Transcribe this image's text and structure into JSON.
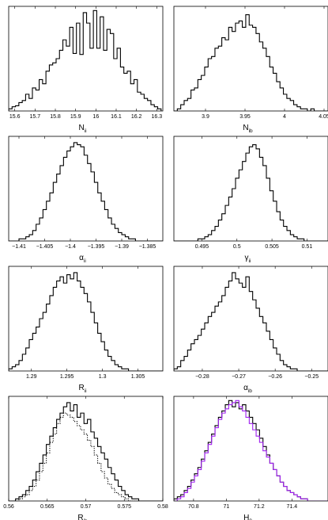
{
  "figure": {
    "panels": [
      {
        "id": "N_ii",
        "xlabel_main": "N",
        "xlabel_sub": "ii"
      },
      {
        "id": "N_ib",
        "xlabel_main": "N",
        "xlabel_sub": "ib"
      },
      {
        "id": "alpha_ii",
        "xlabel_main": "α",
        "xlabel_sub": "ii"
      },
      {
        "id": "gamma_ii",
        "xlabel_main": "γ",
        "xlabel_sub": "ii"
      },
      {
        "id": "R_ii",
        "xlabel_main": "R",
        "xlabel_sub": "ii"
      },
      {
        "id": "alpha_ib",
        "xlabel_main": "α",
        "xlabel_sub": "ib"
      },
      {
        "id": "R_ib",
        "xlabel_main": "R",
        "xlabel_sub": "ib"
      },
      {
        "id": "H_0",
        "xlabel_main": "H",
        "xlabel_sub": "0"
      }
    ]
  },
  "chart_data": [
    {
      "type": "histogram",
      "xlabel": "N_ii",
      "xlim": [
        15.57,
        16.33
      ],
      "xticks": [
        15.6,
        15.7,
        15.8,
        15.9,
        16,
        16.1,
        16.2,
        16.3
      ],
      "xtick_labels": [
        "15.6",
        "15.7",
        "15.8",
        "15.9",
        "16",
        "16.1",
        "16.2",
        "16.3"
      ],
      "series": [
        {
          "color": "#000000",
          "style": "solid",
          "bin_start": 15.57,
          "bin_width": 0.0167,
          "values": [
            0.02,
            0.04,
            0.05,
            0.08,
            0.1,
            0.16,
            0.12,
            0.22,
            0.2,
            0.3,
            0.26,
            0.38,
            0.44,
            0.46,
            0.5,
            0.58,
            0.68,
            0.62,
            0.8,
            0.55,
            0.84,
            0.54,
            0.94,
            0.84,
            0.6,
            0.96,
            0.6,
            0.9,
            0.58,
            0.78,
            0.74,
            0.5,
            0.6,
            0.42,
            0.36,
            0.38,
            0.26,
            0.3,
            0.18,
            0.16,
            0.12,
            0.1,
            0.06,
            0.04,
            0.02
          ]
        }
      ]
    },
    {
      "type": "histogram",
      "xlabel": "N_ib",
      "xlim": [
        3.86,
        4.055
      ],
      "xticks": [
        3.9,
        3.95,
        4,
        4.05
      ],
      "xtick_labels": [
        "3.9",
        "3.95",
        "4",
        "4.05"
      ],
      "series": [
        {
          "color": "#000000",
          "style": "solid",
          "bin_start": 3.86,
          "bin_width": 0.00433,
          "values": [
            0.0,
            0.02,
            0.06,
            0.1,
            0.12,
            0.2,
            0.22,
            0.3,
            0.34,
            0.42,
            0.5,
            0.52,
            0.6,
            0.62,
            0.7,
            0.68,
            0.8,
            0.76,
            0.84,
            0.86,
            0.8,
            0.92,
            0.82,
            0.8,
            0.74,
            0.66,
            0.6,
            0.52,
            0.42,
            0.36,
            0.28,
            0.22,
            0.16,
            0.12,
            0.1,
            0.06,
            0.04,
            0.02,
            0.02,
            0.0,
            0.02,
            0.0,
            0.0,
            0.0,
            0.0
          ]
        }
      ]
    },
    {
      "type": "histogram",
      "xlabel": "α_ii",
      "xlim": [
        -1.412,
        -1.382
      ],
      "xticks": [
        -1.41,
        -1.405,
        -1.4,
        -1.395,
        -1.39,
        -1.385
      ],
      "xtick_labels": [
        "−1.41",
        "−1.405",
        "−1.4",
        "−1.395",
        "−1.39",
        "−1.385"
      ],
      "series": [
        {
          "color": "#000000",
          "style": "solid",
          "bin_start": -1.412,
          "bin_width": 0.000667,
          "values": [
            0.0,
            0.0,
            0.0,
            0.02,
            0.02,
            0.04,
            0.06,
            0.1,
            0.16,
            0.22,
            0.3,
            0.38,
            0.46,
            0.56,
            0.64,
            0.72,
            0.8,
            0.86,
            0.9,
            0.94,
            0.92,
            0.9,
            0.82,
            0.74,
            0.66,
            0.56,
            0.46,
            0.38,
            0.3,
            0.22,
            0.16,
            0.12,
            0.08,
            0.06,
            0.04,
            0.02,
            0.02,
            0.0,
            0.0,
            0.0,
            0.0,
            0.0,
            0.0,
            0.0,
            0.0
          ]
        }
      ]
    },
    {
      "type": "histogram",
      "xlabel": "γ_ii",
      "xlim": [
        0.491,
        0.513
      ],
      "xticks": [
        0.495,
        0.5,
        0.505,
        0.51
      ],
      "xtick_labels": [
        "0.495",
        "0.5",
        "0.505",
        "0.51"
      ],
      "series": [
        {
          "color": "#000000",
          "style": "solid",
          "bin_start": 0.491,
          "bin_width": 0.000489,
          "values": [
            0.0,
            0.0,
            0.0,
            0.0,
            0.0,
            0.0,
            0.0,
            0.02,
            0.02,
            0.04,
            0.06,
            0.1,
            0.14,
            0.2,
            0.26,
            0.34,
            0.42,
            0.5,
            0.6,
            0.68,
            0.76,
            0.84,
            0.9,
            0.92,
            0.88,
            0.8,
            0.72,
            0.6,
            0.48,
            0.38,
            0.28,
            0.2,
            0.14,
            0.1,
            0.06,
            0.04,
            0.02,
            0.02,
            0.0,
            0.0,
            0.0,
            0.0,
            0.0,
            0.0,
            0.0
          ]
        }
      ]
    },
    {
      "type": "histogram",
      "xlabel": "R_ii",
      "xlim": [
        1.2868,
        1.3085
      ],
      "xticks": [
        1.29,
        1.295,
        1.3,
        1.305
      ],
      "xtick_labels": [
        "1.29",
        "1.295",
        "1.3",
        "1.305"
      ],
      "series": [
        {
          "color": "#000000",
          "style": "solid",
          "bin_start": 1.2868,
          "bin_width": 0.000482,
          "values": [
            0.02,
            0.04,
            0.06,
            0.1,
            0.16,
            0.22,
            0.3,
            0.36,
            0.42,
            0.5,
            0.56,
            0.64,
            0.72,
            0.8,
            0.86,
            0.9,
            0.84,
            0.92,
            0.88,
            0.94,
            0.86,
            0.8,
            0.74,
            0.66,
            0.56,
            0.46,
            0.36,
            0.28,
            0.2,
            0.14,
            0.1,
            0.06,
            0.04,
            0.02,
            0.02,
            0.0,
            0.0,
            0.0,
            0.0,
            0.0,
            0.0,
            0.0,
            0.0,
            0.0,
            0.0
          ]
        }
      ]
    },
    {
      "type": "histogram",
      "xlabel": "α_ib",
      "xlim": [
        -0.2878,
        -0.2455
      ],
      "xticks": [
        -0.28,
        -0.27,
        -0.26,
        -0.25
      ],
      "xtick_labels": [
        "−0.28",
        "−0.27",
        "−0.26",
        "−0.25"
      ],
      "series": [
        {
          "color": "#000000",
          "style": "solid",
          "bin_start": -0.2878,
          "bin_width": 0.00094,
          "values": [
            0.02,
            0.04,
            0.1,
            0.14,
            0.2,
            0.26,
            0.3,
            0.34,
            0.4,
            0.46,
            0.52,
            0.56,
            0.62,
            0.66,
            0.72,
            0.8,
            0.86,
            0.94,
            0.88,
            0.84,
            0.8,
            0.9,
            0.76,
            0.68,
            0.6,
            0.52,
            0.46,
            0.38,
            0.3,
            0.22,
            0.16,
            0.1,
            0.06,
            0.04,
            0.02,
            0.02,
            0.0,
            0.0,
            0.0,
            0.0,
            0.0,
            0.0,
            0.0,
            0.0,
            0.0
          ]
        }
      ]
    },
    {
      "type": "histogram",
      "xlabel": "R_ib",
      "xlim": [
        0.56,
        0.58
      ],
      "xticks": [
        0.56,
        0.565,
        0.57,
        0.575,
        0.58
      ],
      "xtick_labels": [
        "0.56",
        "0.565",
        "0.57",
        "0.575",
        "0.58"
      ],
      "series": [
        {
          "color": "#000000",
          "style": "solid",
          "bin_start": 0.56,
          "bin_width": 0.000444,
          "values": [
            0.0,
            0.0,
            0.02,
            0.04,
            0.06,
            0.1,
            0.14,
            0.2,
            0.28,
            0.36,
            0.44,
            0.54,
            0.62,
            0.7,
            0.78,
            0.84,
            0.9,
            0.94,
            0.86,
            0.92,
            0.8,
            0.84,
            0.74,
            0.78,
            0.66,
            0.6,
            0.52,
            0.46,
            0.4,
            0.32,
            0.26,
            0.2,
            0.14,
            0.1,
            0.06,
            0.04,
            0.02,
            0.02,
            0.0,
            0.0,
            0.0,
            0.0,
            0.0,
            0.0,
            0.0
          ]
        },
        {
          "color": "#000000",
          "style": "dotted",
          "bin_start": 0.56,
          "bin_width": 0.000444,
          "values": [
            0.0,
            0.0,
            0.0,
            0.02,
            0.04,
            0.06,
            0.1,
            0.14,
            0.2,
            0.28,
            0.36,
            0.46,
            0.56,
            0.64,
            0.74,
            0.8,
            0.84,
            0.82,
            0.8,
            0.76,
            0.72,
            0.68,
            0.64,
            0.58,
            0.52,
            0.44,
            0.36,
            0.28,
            0.22,
            0.16,
            0.12,
            0.08,
            0.06,
            0.04,
            0.02,
            0.0,
            0.0,
            0.0,
            0.0,
            0.0,
            0.0,
            0.0,
            0.0,
            0.0,
            0.0
          ]
        }
      ]
    },
    {
      "type": "histogram",
      "xlabel": "H_0",
      "xlim": [
        70.68,
        71.62
      ],
      "xticks": [
        70.8,
        71,
        71.2,
        71.4
      ],
      "xtick_labels": [
        "70.8",
        "71",
        "71.2",
        "71.4"
      ],
      "series": [
        {
          "color": "#000000",
          "style": "solid",
          "bin_start": 70.68,
          "bin_width": 0.0209,
          "values": [
            0.02,
            0.04,
            0.06,
            0.1,
            0.14,
            0.2,
            0.26,
            0.32,
            0.4,
            0.48,
            0.56,
            0.64,
            0.72,
            0.8,
            0.86,
            0.92,
            0.96,
            0.9,
            0.94,
            0.88,
            0.92,
            0.86,
            0.8,
            0.74,
            0.68,
            0.6,
            0.52,
            0.44,
            0.36,
            0.3,
            0.24,
            0.18,
            0.14,
            0.1,
            0.08,
            0.06,
            0.04,
            0.02,
            0.02,
            0.0,
            0.0,
            0.0,
            0.0,
            0.0,
            0.0
          ]
        },
        {
          "color": "#a020f0",
          "style": "solid",
          "bin_start": 70.68,
          "bin_width": 0.0209,
          "values": [
            0.0,
            0.02,
            0.04,
            0.08,
            0.12,
            0.18,
            0.24,
            0.3,
            0.38,
            0.46,
            0.54,
            0.62,
            0.7,
            0.78,
            0.84,
            0.88,
            0.92,
            0.94,
            0.96,
            0.9,
            0.86,
            0.8,
            0.74,
            0.68,
            0.62,
            0.56,
            0.48,
            0.42,
            0.36,
            0.3,
            0.24,
            0.18,
            0.14,
            0.1,
            0.08,
            0.06,
            0.04,
            0.02,
            0.02,
            0.0,
            0.0,
            0.0,
            0.0,
            0.0,
            0.0
          ]
        }
      ]
    }
  ]
}
